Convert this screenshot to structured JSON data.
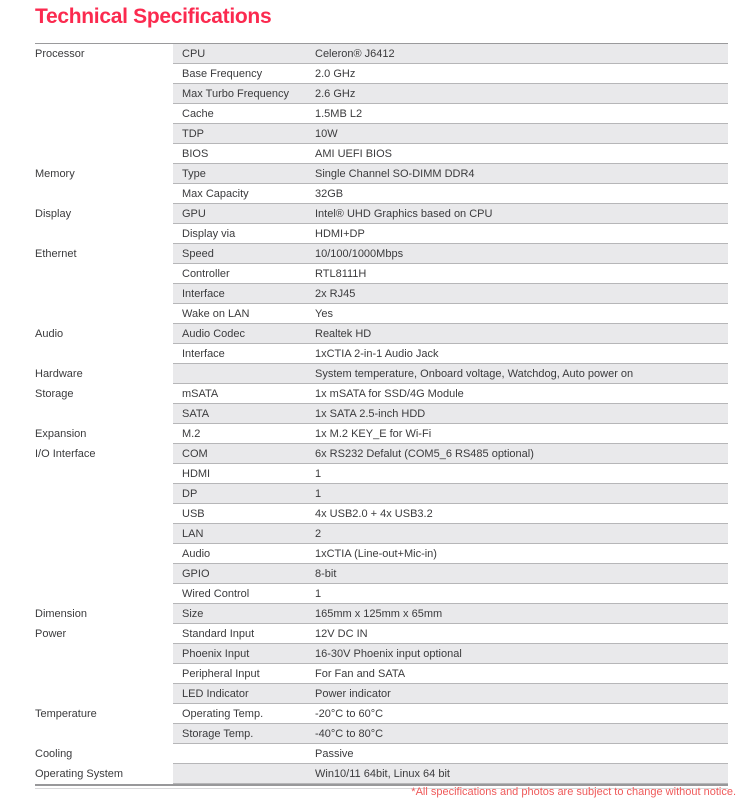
{
  "title": "Technical Specifications",
  "colors": {
    "accent": "#fb2a4f",
    "row_shade": "#e9e9eb",
    "row_separator": "#b6b6b8",
    "table_border": "#98989a",
    "text": "#3b3b3d",
    "footer_text": "#ef5a5a"
  },
  "footer": {
    "disclaimer": "*All specifications and photos are subject to change without notice."
  },
  "table": {
    "rows": [
      {
        "category": "Processor",
        "label": "CPU",
        "value": "Celeron® J6412"
      },
      {
        "category": "",
        "label": "Base Frequency",
        "value": "2.0 GHz"
      },
      {
        "category": "",
        "label": "Max Turbo Frequency",
        "value": "2.6 GHz"
      },
      {
        "category": "",
        "label": "Cache",
        "value": "1.5MB L2"
      },
      {
        "category": "",
        "label": "TDP",
        "value": "10W"
      },
      {
        "category": "",
        "label": "BIOS",
        "value": "AMI UEFI BIOS"
      },
      {
        "category": "Memory",
        "label": "Type",
        "value": "Single Channel SO-DIMM DDR4"
      },
      {
        "category": "",
        "label": "Max Capacity",
        "value": "32GB"
      },
      {
        "category": "Display",
        "label": "GPU",
        "value": "Intel® UHD Graphics based on CPU"
      },
      {
        "category": "",
        "label": "Display via",
        "value": "HDMI+DP"
      },
      {
        "category": "Ethernet",
        "label": "Speed",
        "value": "10/100/1000Mbps"
      },
      {
        "category": "",
        "label": "Controller",
        "value": "RTL8111H"
      },
      {
        "category": "",
        "label": "Interface",
        "value": "2x RJ45"
      },
      {
        "category": "",
        "label": "Wake on LAN",
        "value": "Yes"
      },
      {
        "category": "Audio",
        "label": "Audio Codec",
        "value": "Realtek HD"
      },
      {
        "category": "",
        "label": "Interface",
        "value": "1xCTIA 2-in-1 Audio Jack"
      },
      {
        "category": "Hardware",
        "label": "",
        "value": "System temperature, Onboard voltage, Watchdog, Auto power on"
      },
      {
        "category": "Storage",
        "label": "mSATA",
        "value": "1x mSATA for SSD/4G Module"
      },
      {
        "category": "",
        "label": "SATA",
        "value": "1x SATA 2.5-inch HDD"
      },
      {
        "category": "Expansion",
        "label": "M.2",
        "value": "1x M.2 KEY_E for Wi-Fi"
      },
      {
        "category": "I/O Interface",
        "label": "COM",
        "value": "6x RS232 Defalut (COM5_6 RS485 optional)"
      },
      {
        "category": "",
        "label": "HDMI",
        "value": "1"
      },
      {
        "category": "",
        "label": "DP",
        "value": "1"
      },
      {
        "category": "",
        "label": "USB",
        "value": "4x USB2.0 + 4x USB3.2"
      },
      {
        "category": "",
        "label": "LAN",
        "value": "2"
      },
      {
        "category": "",
        "label": "Audio",
        "value": "1xCTIA (Line-out+Mic-in)"
      },
      {
        "category": "",
        "label": "GPIO",
        "value": "8-bit"
      },
      {
        "category": "",
        "label": "Wired Control",
        "value": "1"
      },
      {
        "category": "Dimension",
        "label": "Size",
        "value": "165mm x 125mm x 65mm"
      },
      {
        "category": "Power",
        "label": "Standard Input",
        "value": "12V DC IN"
      },
      {
        "category": "",
        "label": "Phoenix Input",
        "value": "16-30V Phoenix input optional"
      },
      {
        "category": "",
        "label": "Peripheral Input",
        "value": "For Fan and SATA"
      },
      {
        "category": "",
        "label": "LED Indicator",
        "value": "Power indicator"
      },
      {
        "category": "Temperature",
        "label": "Operating Temp.",
        "value": "-20°C to 60°C"
      },
      {
        "category": "",
        "label": "Storage Temp.",
        "value": "-40°C to 80°C"
      },
      {
        "category": "Cooling",
        "label": "",
        "value": "Passive"
      },
      {
        "category": "Operating System",
        "label": "",
        "value": "Win10/11 64bit, Linux 64 bit"
      }
    ]
  }
}
